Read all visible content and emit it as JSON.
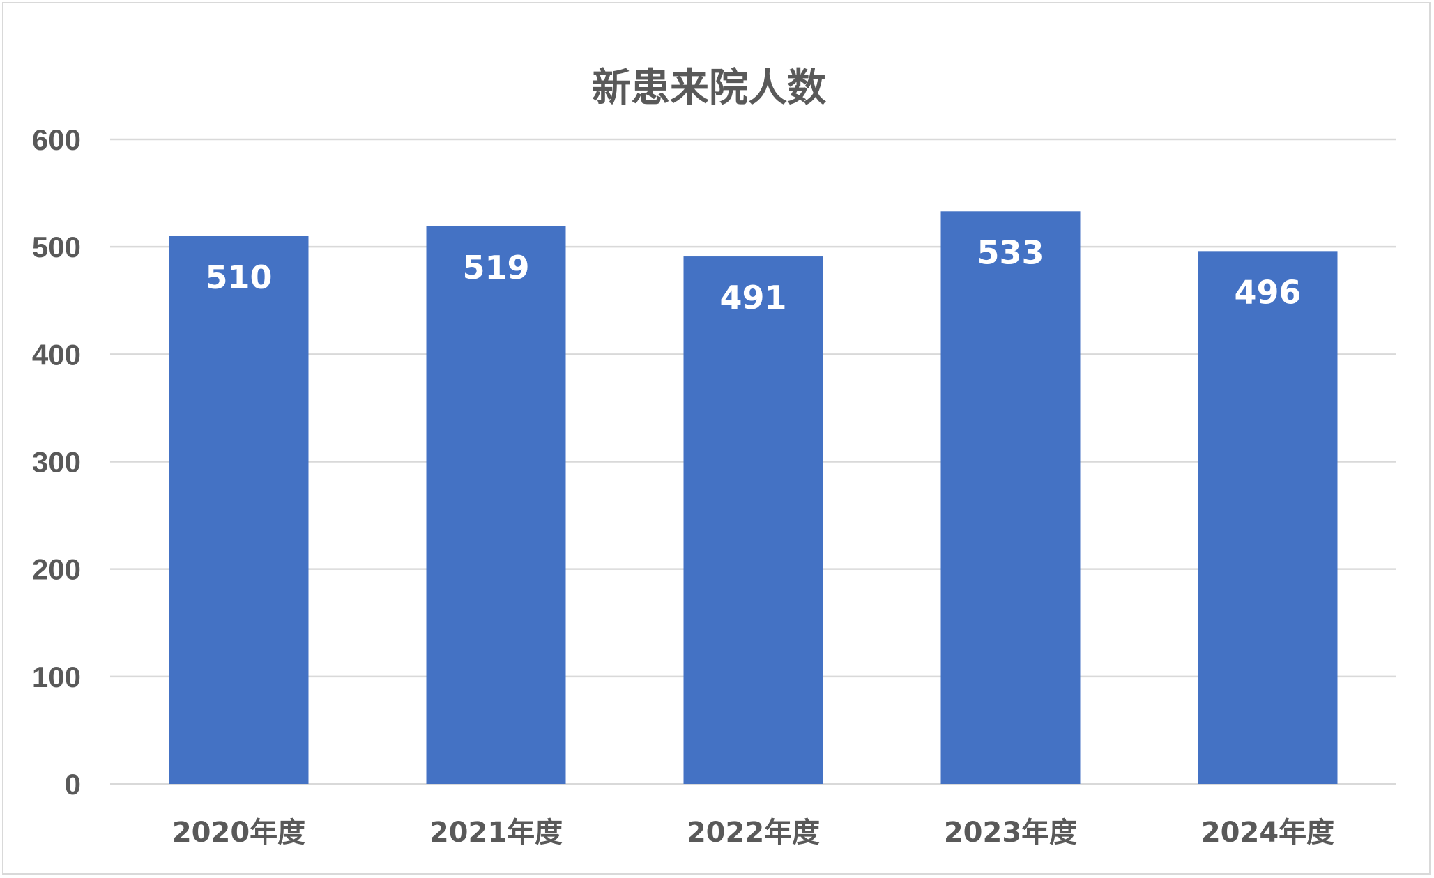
{
  "chart_data": {
    "type": "bar",
    "title": "新患来院人数",
    "categories": [
      "2020年度",
      "2021年度",
      "2022年度",
      "2023年度",
      "2024年度"
    ],
    "values": [
      510,
      519,
      491,
      533,
      496
    ],
    "data_labels": [
      "510",
      "519",
      "491",
      "533",
      "496"
    ],
    "ylim": [
      0,
      600
    ],
    "yticks": [
      "0",
      "100",
      "200",
      "300",
      "400",
      "500",
      "600"
    ],
    "xlabel": "",
    "ylabel": "",
    "grid": true,
    "legend": "none",
    "bar_color": "#4472c4"
  }
}
